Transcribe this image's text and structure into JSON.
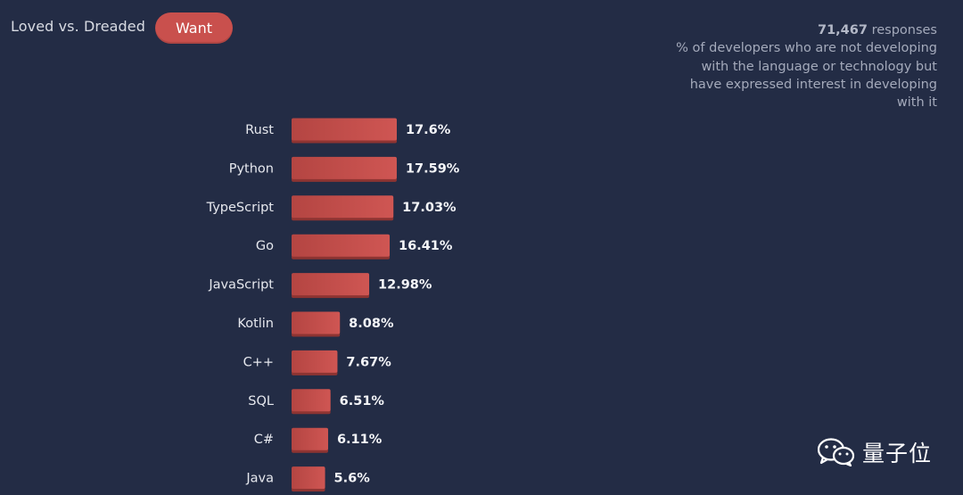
{
  "tabs": {
    "loved_label": "Loved vs. Dreaded",
    "want_label": "Want"
  },
  "info": {
    "count": "71,467",
    "count_suffix": "responses",
    "description": "% of developers who are not developing with the language or technology but have expressed interest in developing with it"
  },
  "watermark": {
    "text": "量子位",
    "icon": "wechat-icon"
  },
  "colors": {
    "background": "#232c45",
    "bar": "#c9504d",
    "accent": "#c9504d"
  },
  "chart_data": {
    "type": "bar",
    "orientation": "horizontal",
    "title": "",
    "xlabel": "",
    "ylabel": "",
    "categories": [
      "Rust",
      "Python",
      "TypeScript",
      "Go",
      "JavaScript",
      "Kotlin",
      "C++",
      "SQL",
      "C#",
      "Java"
    ],
    "values": [
      17.6,
      17.59,
      17.03,
      16.41,
      12.98,
      8.08,
      7.67,
      6.51,
      6.11,
      5.6
    ],
    "value_labels": [
      "17.6%",
      "17.59%",
      "17.03%",
      "16.41%",
      "12.98%",
      "8.08%",
      "7.67%",
      "6.51%",
      "6.11%",
      "5.6%"
    ],
    "unit": "%",
    "grid": false
  }
}
